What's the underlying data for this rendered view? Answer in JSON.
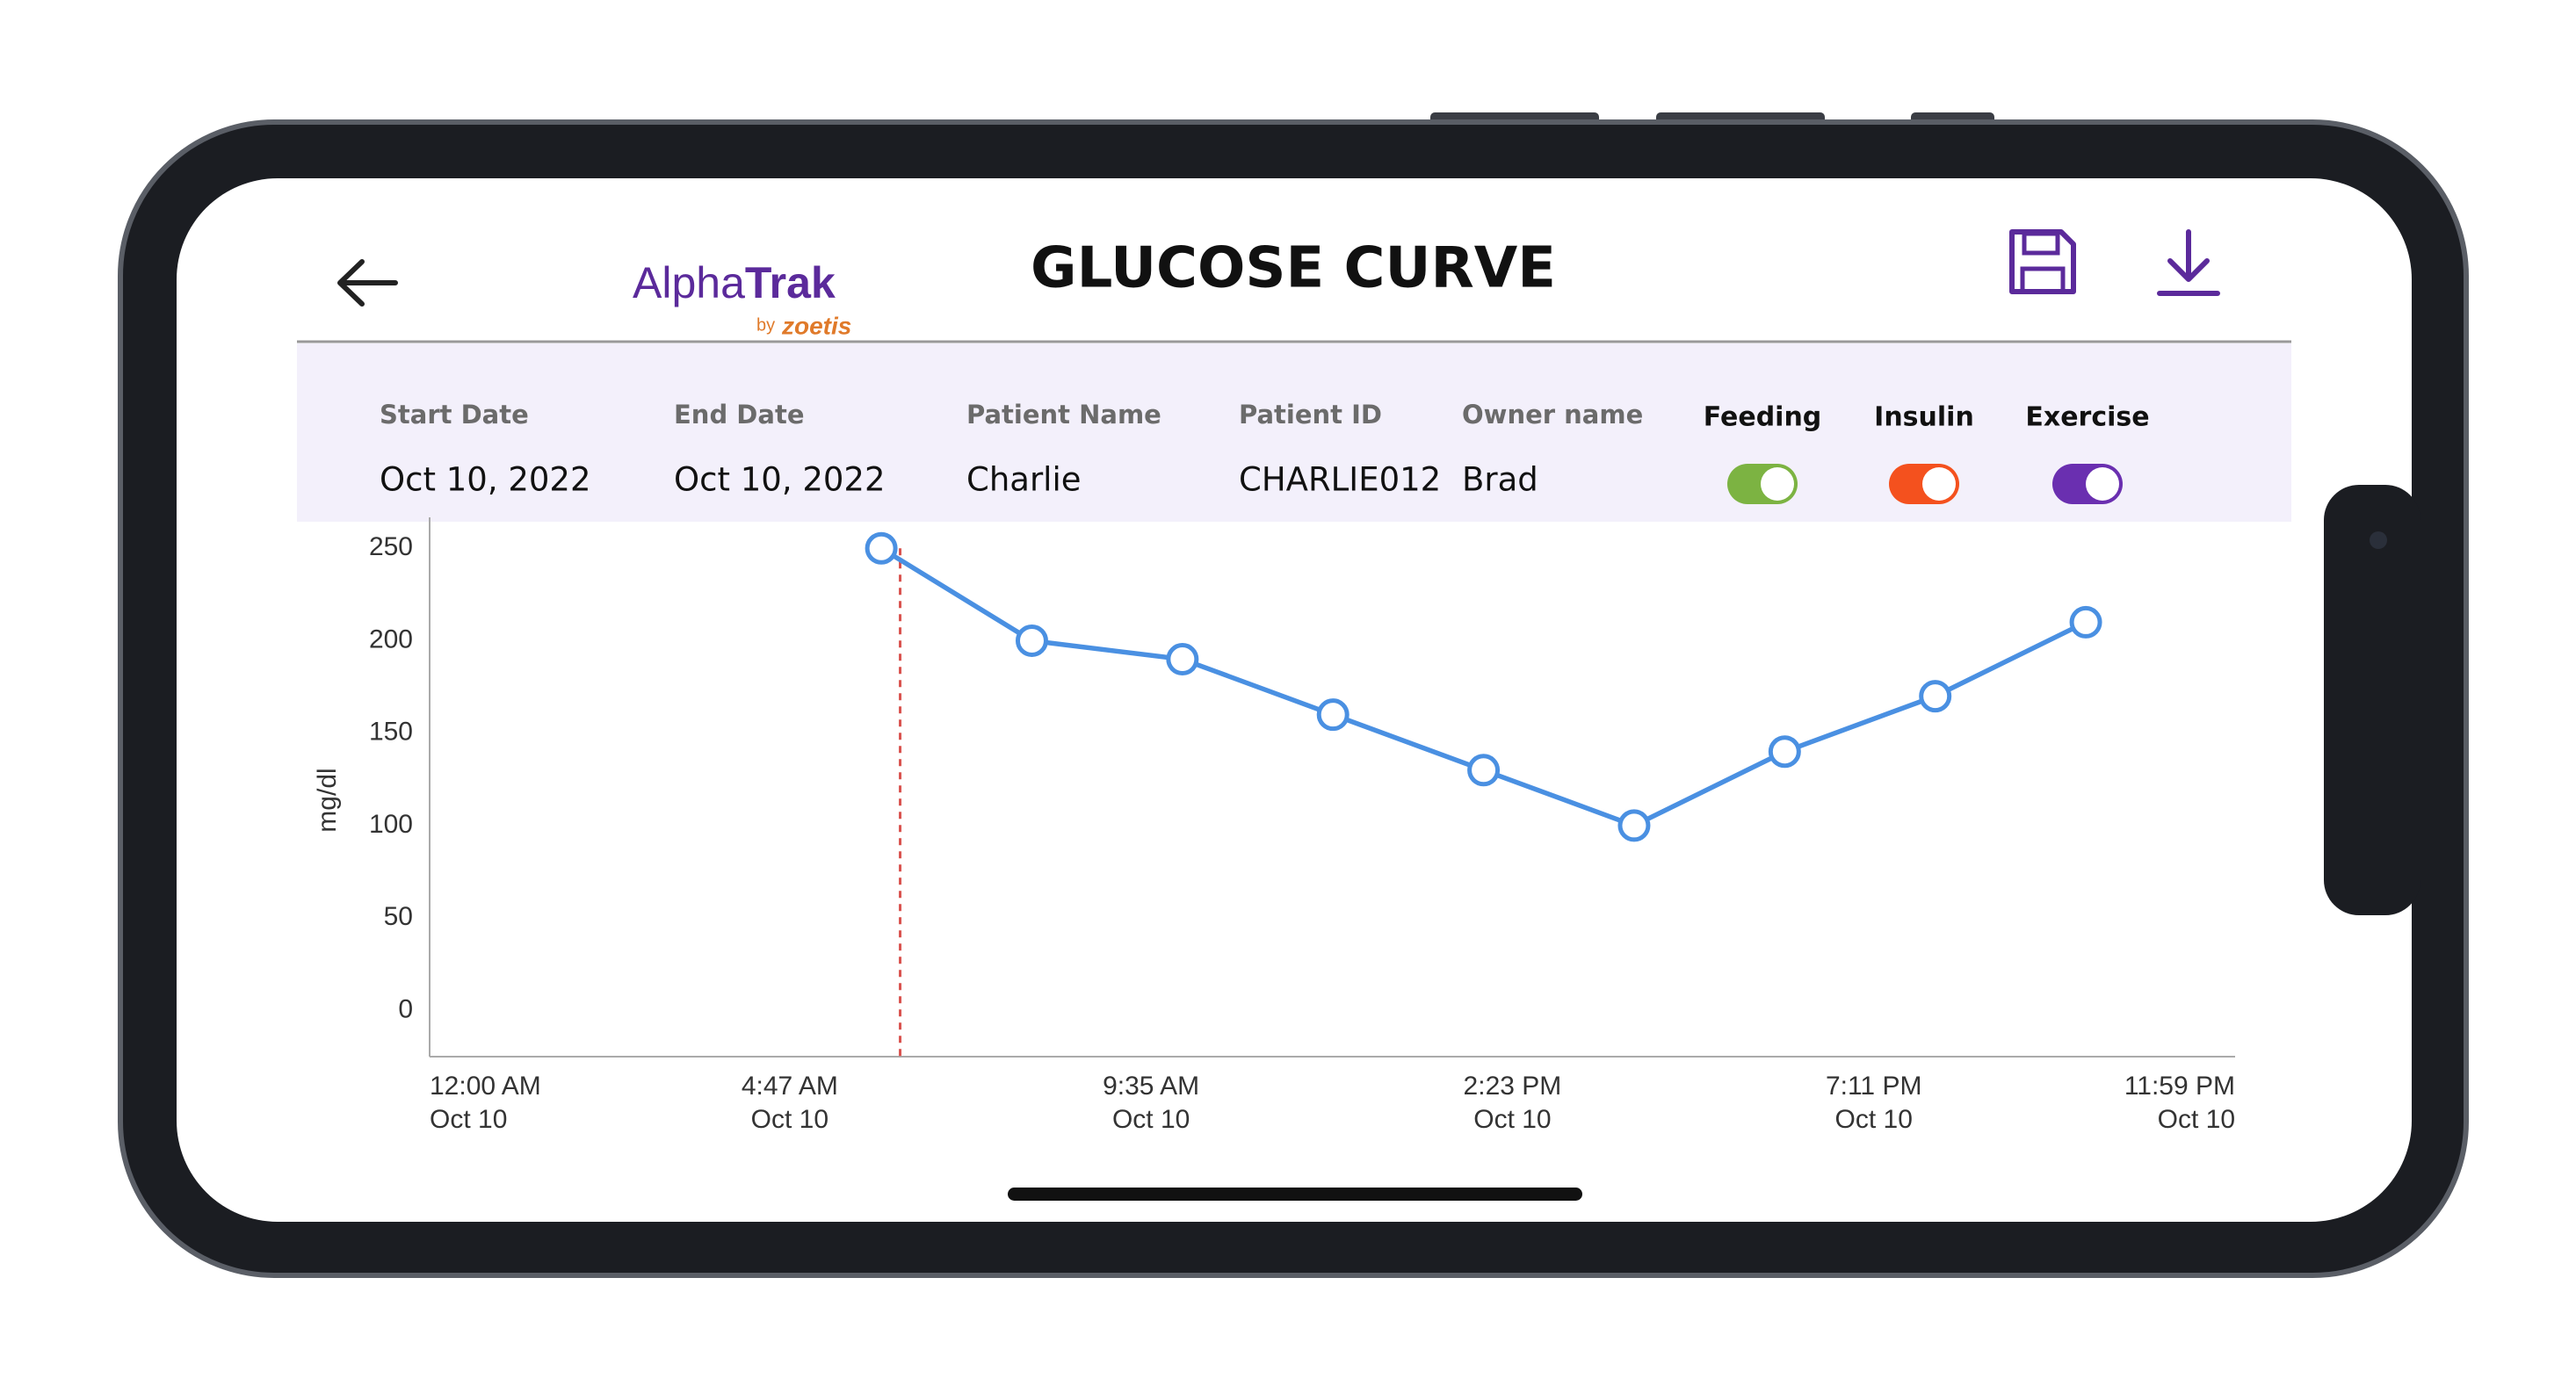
{
  "header": {
    "title": "GLUCOSE CURVE",
    "logo_part1": "Alpha",
    "logo_part2": "Trak",
    "logo_by": "by",
    "logo_brand": "zoetis"
  },
  "info": {
    "fields": [
      {
        "label": "Start Date",
        "value": "Oct 10, 2022"
      },
      {
        "label": "End Date",
        "value": "Oct 10, 2022"
      },
      {
        "label": "Patient Name",
        "value": "Charlie"
      },
      {
        "label": "Patient ID",
        "value": "CHARLIE012"
      },
      {
        "label": "Owner name",
        "value": "Brad"
      }
    ],
    "toggles": [
      {
        "label": "Feeding",
        "color": "#7cb342",
        "on": true
      },
      {
        "label": "Insulin",
        "color": "#f4511e",
        "on": true
      },
      {
        "label": "Exercise",
        "color": "#6a2fb0",
        "on": true
      }
    ]
  },
  "chart_data": {
    "type": "line",
    "y_label": "mg/dl",
    "x": [
      360,
      480,
      600,
      720,
      840,
      960,
      1080,
      1200,
      1320
    ],
    "values": [
      250,
      200,
      190,
      160,
      130,
      100,
      140,
      170,
      210
    ],
    "color": "#4a90e2",
    "xlim": [
      0,
      1439
    ],
    "xticks": [
      {
        "value": 0,
        "label": [
          "12:00 AM",
          "Oct 10"
        ]
      },
      {
        "value": 287,
        "label": [
          "4:47 AM",
          "Oct 10"
        ]
      },
      {
        "value": 575,
        "label": [
          "9:35 AM",
          "Oct 10"
        ]
      },
      {
        "value": 863,
        "label": [
          "2:23 PM",
          "Oct 10"
        ]
      },
      {
        "value": 1151,
        "label": [
          "7:11 PM",
          "Oct 10"
        ]
      },
      {
        "value": 1439,
        "label": [
          "11:59 PM",
          "Oct 10"
        ]
      }
    ],
    "ylim": [
      -25,
      262
    ],
    "yticks": [
      0,
      50,
      100,
      150,
      200,
      250
    ],
    "reference_line": {
      "x": 375,
      "color": "#d9534f"
    }
  }
}
